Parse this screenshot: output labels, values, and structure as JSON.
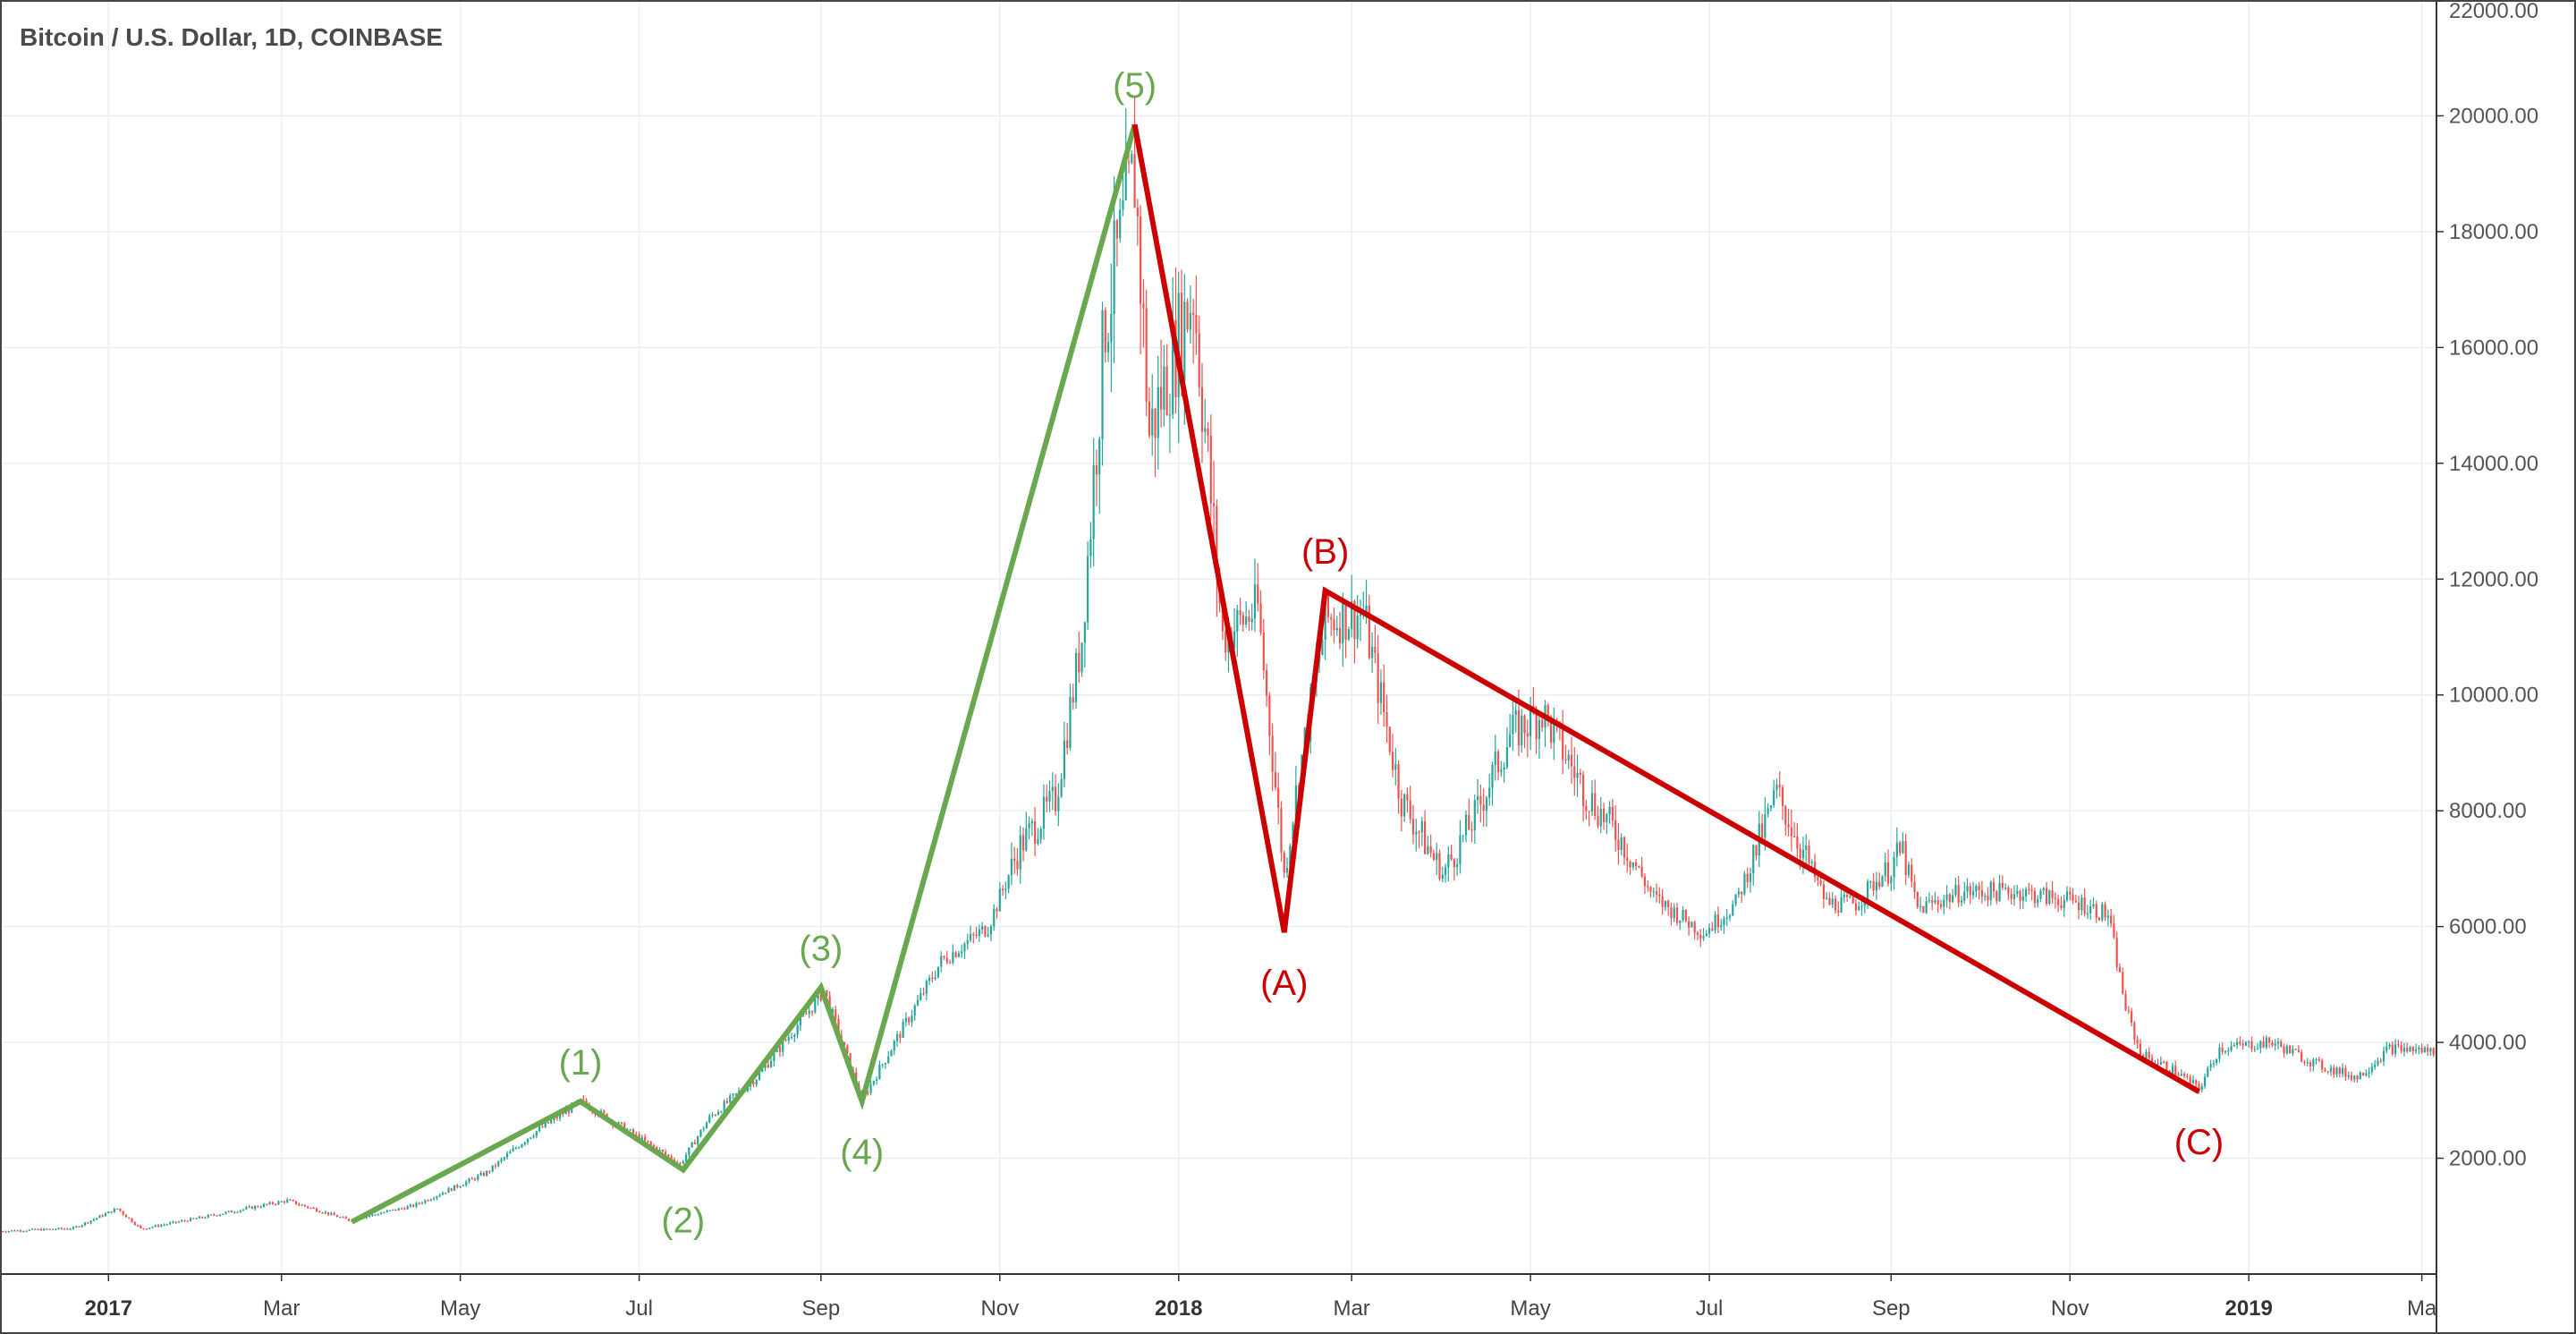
{
  "chart_data": {
    "type": "candlestick",
    "title": "Bitcoin / U.S. Dollar, 1D, COINBASE",
    "ylim": [
      0,
      22000
    ],
    "y_ticks": [
      2000,
      4000,
      6000,
      8000,
      10000,
      12000,
      14000,
      16000,
      18000,
      20000,
      22000
    ],
    "y_tick_labels": [
      "2000.00",
      "4000.00",
      "6000.00",
      "8000.00",
      "10000.00",
      "12000.00",
      "14000.00",
      "16000.00",
      "18000.00",
      "20000.00",
      "22000.00"
    ],
    "x_range": [
      "2016-11-25",
      "2019-03-06"
    ],
    "x_ticks": [
      {
        "date": "2017-01-01",
        "label": "2017",
        "year": true
      },
      {
        "date": "2017-03-01",
        "label": "Mar",
        "year": false
      },
      {
        "date": "2017-05-01",
        "label": "May",
        "year": false
      },
      {
        "date": "2017-07-01",
        "label": "Jul",
        "year": false
      },
      {
        "date": "2017-09-01",
        "label": "Sep",
        "year": false
      },
      {
        "date": "2017-11-01",
        "label": "Nov",
        "year": false
      },
      {
        "date": "2018-01-01",
        "label": "2018",
        "year": true
      },
      {
        "date": "2018-03-01",
        "label": "Mar",
        "year": false
      },
      {
        "date": "2018-05-01",
        "label": "May",
        "year": false
      },
      {
        "date": "2018-07-01",
        "label": "Jul",
        "year": false
      },
      {
        "date": "2018-09-01",
        "label": "Sep",
        "year": false
      },
      {
        "date": "2018-11-01",
        "label": "Nov",
        "year": false
      },
      {
        "date": "2019-01-01",
        "label": "2019",
        "year": true
      },
      {
        "date": "2019-03-01",
        "label": "Ma",
        "year": false
      }
    ],
    "grid": true,
    "price_path": [
      [
        "2016-11-25",
        740
      ],
      [
        "2016-12-20",
        790
      ],
      [
        "2017-01-04",
        1130
      ],
      [
        "2017-01-12",
        780
      ],
      [
        "2017-02-01",
        970
      ],
      [
        "2017-03-03",
        1270
      ],
      [
        "2017-03-24",
        930
      ],
      [
        "2017-04-15",
        1180
      ],
      [
        "2017-05-10",
        1750
      ],
      [
        "2017-05-25",
        2400
      ],
      [
        "2017-06-11",
        2980
      ],
      [
        "2017-06-20",
        2700
      ],
      [
        "2017-07-15",
        1900
      ],
      [
        "2017-07-25",
        2700
      ],
      [
        "2017-08-10",
        3400
      ],
      [
        "2017-08-31",
        4750
      ],
      [
        "2017-09-02",
        4900
      ],
      [
        "2017-09-15",
        3000
      ],
      [
        "2017-09-25",
        3900
      ],
      [
        "2017-10-12",
        5400
      ],
      [
        "2017-10-28",
        6000
      ],
      [
        "2017-11-08",
        7400
      ],
      [
        "2017-11-20",
        8200
      ],
      [
        "2017-11-29",
        11000
      ],
      [
        "2017-12-07",
        16500
      ],
      [
        "2017-12-17",
        19000
      ],
      [
        "2017-12-22",
        14500
      ],
      [
        "2018-01-06",
        17000
      ],
      [
        "2018-01-16",
        11000
      ],
      [
        "2018-01-28",
        11500
      ],
      [
        "2018-02-06",
        6900
      ],
      [
        "2018-02-10",
        8300
      ],
      [
        "2018-02-20",
        11300
      ],
      [
        "2018-03-05",
        11400
      ],
      [
        "2018-03-18",
        8200
      ],
      [
        "2018-04-01",
        6900
      ],
      [
        "2018-04-12",
        7900
      ],
      [
        "2018-04-24",
        9300
      ],
      [
        "2018-05-05",
        9700
      ],
      [
        "2018-05-20",
        8300
      ],
      [
        "2018-06-01",
        7500
      ],
      [
        "2018-06-12",
        6500
      ],
      [
        "2018-06-29",
        5900
      ],
      [
        "2018-07-10",
        6400
      ],
      [
        "2018-07-24",
        8300
      ],
      [
        "2018-08-10",
        6400
      ],
      [
        "2018-08-20",
        6400
      ],
      [
        "2018-09-05",
        7300
      ],
      [
        "2018-09-10",
        6300
      ],
      [
        "2018-09-25",
        6600
      ],
      [
        "2018-10-15",
        6600
      ],
      [
        "2018-11-05",
        6400
      ],
      [
        "2018-11-14",
        6200
      ],
      [
        "2018-11-20",
        4600
      ],
      [
        "2018-11-25",
        3800
      ],
      [
        "2018-12-07",
        3500
      ],
      [
        "2018-12-15",
        3200
      ],
      [
        "2018-12-22",
        3900
      ],
      [
        "2019-01-09",
        4000
      ],
      [
        "2019-01-25",
        3600
      ],
      [
        "2019-02-07",
        3400
      ],
      [
        "2019-02-18",
        3900
      ],
      [
        "2019-03-06",
        3850
      ]
    ],
    "colors": {
      "up": "#26a69a",
      "down": "#ef5350",
      "impulse": "#6aa84f",
      "corrective": "#cc0000",
      "grid": "#e8eef3"
    },
    "wave_annotations": {
      "impulse": [
        {
          "date": "2017-03-25",
          "price": 900
        },
        {
          "date": "2017-06-11",
          "price": 2980,
          "label": "(1)"
        },
        {
          "date": "2017-07-16",
          "price": 1800,
          "label": "(2)"
        },
        {
          "date": "2017-09-01",
          "price": 4950,
          "label": "(3)"
        },
        {
          "date": "2017-09-15",
          "price": 2980,
          "label": "(4)"
        },
        {
          "date": "2017-12-17",
          "price": 19850,
          "label": "(5)"
        }
      ],
      "corrective": [
        {
          "date": "2017-12-17",
          "price": 19850
        },
        {
          "date": "2018-02-06",
          "price": 5900,
          "label": "(A)"
        },
        {
          "date": "2018-02-20",
          "price": 11800,
          "label": "(B)"
        },
        {
          "date": "2018-12-15",
          "price": 3150,
          "label": "(C)"
        }
      ]
    }
  }
}
